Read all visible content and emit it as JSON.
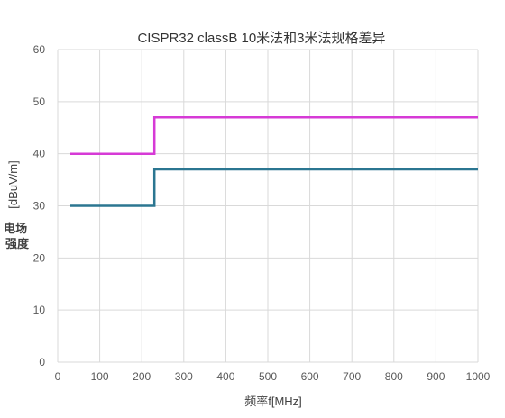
{
  "chart_data": {
    "type": "line",
    "title": "CISPR32 classB 10米法和3米法规格差异",
    "xlabel_main": "频率f",
    "xlabel_unit": "[MHz]",
    "ylabel_main": "电场强度",
    "ylabel_unit": "[dBuV/m]",
    "xlim": [
      0,
      1000
    ],
    "ylim": [
      0,
      60
    ],
    "x_ticks": [
      "0",
      "100",
      "200",
      "300",
      "400",
      "500",
      "600",
      "700",
      "800",
      "900",
      "1000"
    ],
    "y_ticks": [
      "0",
      "10",
      "20",
      "30",
      "40",
      "50",
      "60"
    ],
    "grid": true,
    "legend": "none",
    "series": [
      {
        "color": "#d63ad6",
        "points": [
          [
            30,
            40
          ],
          [
            230,
            40
          ],
          [
            230,
            47
          ],
          [
            1000,
            47
          ]
        ]
      },
      {
        "color": "#2b7691",
        "points": [
          [
            30,
            30
          ],
          [
            230,
            30
          ],
          [
            230,
            37
          ],
          [
            1000,
            37
          ]
        ]
      }
    ]
  }
}
